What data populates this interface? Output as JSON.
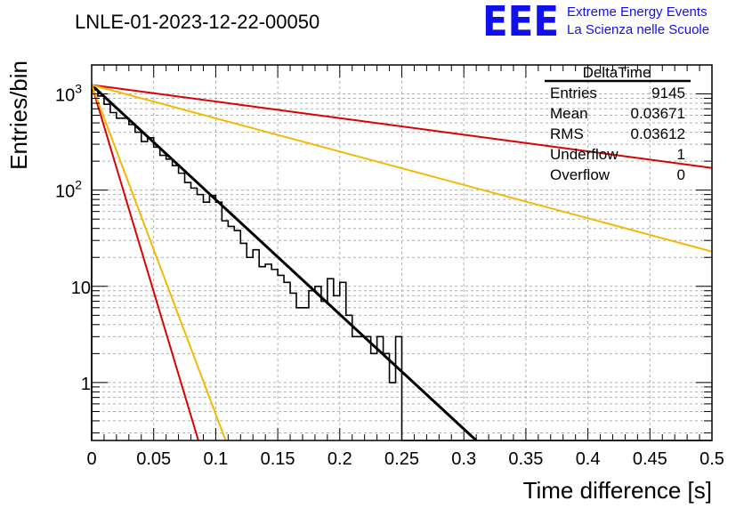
{
  "chart_data": {
    "type": "histogram",
    "title": "LNLE-01-2023-12-22-00050",
    "xlabel": "Time difference [s]",
    "ylabel": "Entries/bin",
    "x_scale": "linear",
    "y_scale": "log",
    "xlim": [
      0,
      0.5
    ],
    "ylim": [
      0.25,
      2000
    ],
    "grid": true,
    "x_ticks": [
      "0",
      "0.05",
      "0.1",
      "0.15",
      "0.2",
      "0.25",
      "0.3",
      "0.35",
      "0.4",
      "0.45",
      "0.5"
    ],
    "y_ticks": [
      {
        "base": "1",
        "exp": ""
      },
      {
        "base": "10",
        "exp": ""
      },
      {
        "base": "10",
        "exp": "2"
      },
      {
        "base": "10",
        "exp": "3"
      }
    ],
    "bin_width": 0.005,
    "bin_counts": [
      1100,
      950,
      780,
      640,
      560,
      560,
      480,
      400,
      320,
      350,
      280,
      230,
      210,
      180,
      150,
      120,
      105,
      90,
      75,
      88,
      75,
      48,
      42,
      38,
      28,
      20,
      24,
      16,
      17,
      15,
      13,
      11,
      8.5,
      6,
      6,
      9,
      10,
      7,
      12,
      8,
      11,
      5,
      3,
      3,
      3,
      2,
      3,
      2,
      1,
      3,
      0,
      0,
      0,
      0,
      0,
      0,
      0,
      0,
      0,
      0,
      0,
      0,
      0,
      0,
      0,
      0,
      0,
      0,
      0,
      0,
      0,
      0,
      0,
      0,
      0,
      0,
      0,
      0,
      0,
      0,
      0,
      0,
      0,
      0,
      0,
      0,
      0,
      0,
      0,
      0,
      0,
      0,
      0,
      0,
      0,
      0,
      0,
      0,
      0,
      0
    ],
    "lines": [
      {
        "color": "#000000",
        "width": 3,
        "points": [
          [
            0,
            1240
          ],
          [
            0.31,
            0.25
          ]
        ]
      },
      {
        "color": "#dd0000",
        "width": 2,
        "points": [
          [
            0,
            1240
          ],
          [
            0.5,
            170
          ]
        ]
      },
      {
        "color": "#f5b800",
        "width": 2,
        "points": [
          [
            0,
            1240
          ],
          [
            0.5,
            23
          ]
        ]
      },
      {
        "color": "#dd0000",
        "width": 2,
        "points": [
          [
            0,
            1240
          ],
          [
            0.086,
            0.25
          ]
        ]
      },
      {
        "color": "#f5b800",
        "width": 2,
        "points": [
          [
            0,
            1240
          ],
          [
            0.108,
            0.25
          ]
        ]
      }
    ],
    "stats": {
      "name": "DeltaTime",
      "rows": [
        {
          "label": "Entries",
          "value": "9145"
        },
        {
          "label": "Mean",
          "value": "0.03671"
        },
        {
          "label": "RMS",
          "value": "0.03612"
        },
        {
          "label": "Underflow",
          "value": "1"
        },
        {
          "label": "Overflow",
          "value": "0"
        }
      ]
    }
  },
  "logo": {
    "mark": "EEE",
    "line1": "Extreme Energy Events",
    "line2": "La Scienza nelle Scuole",
    "color": "#1010ee"
  }
}
